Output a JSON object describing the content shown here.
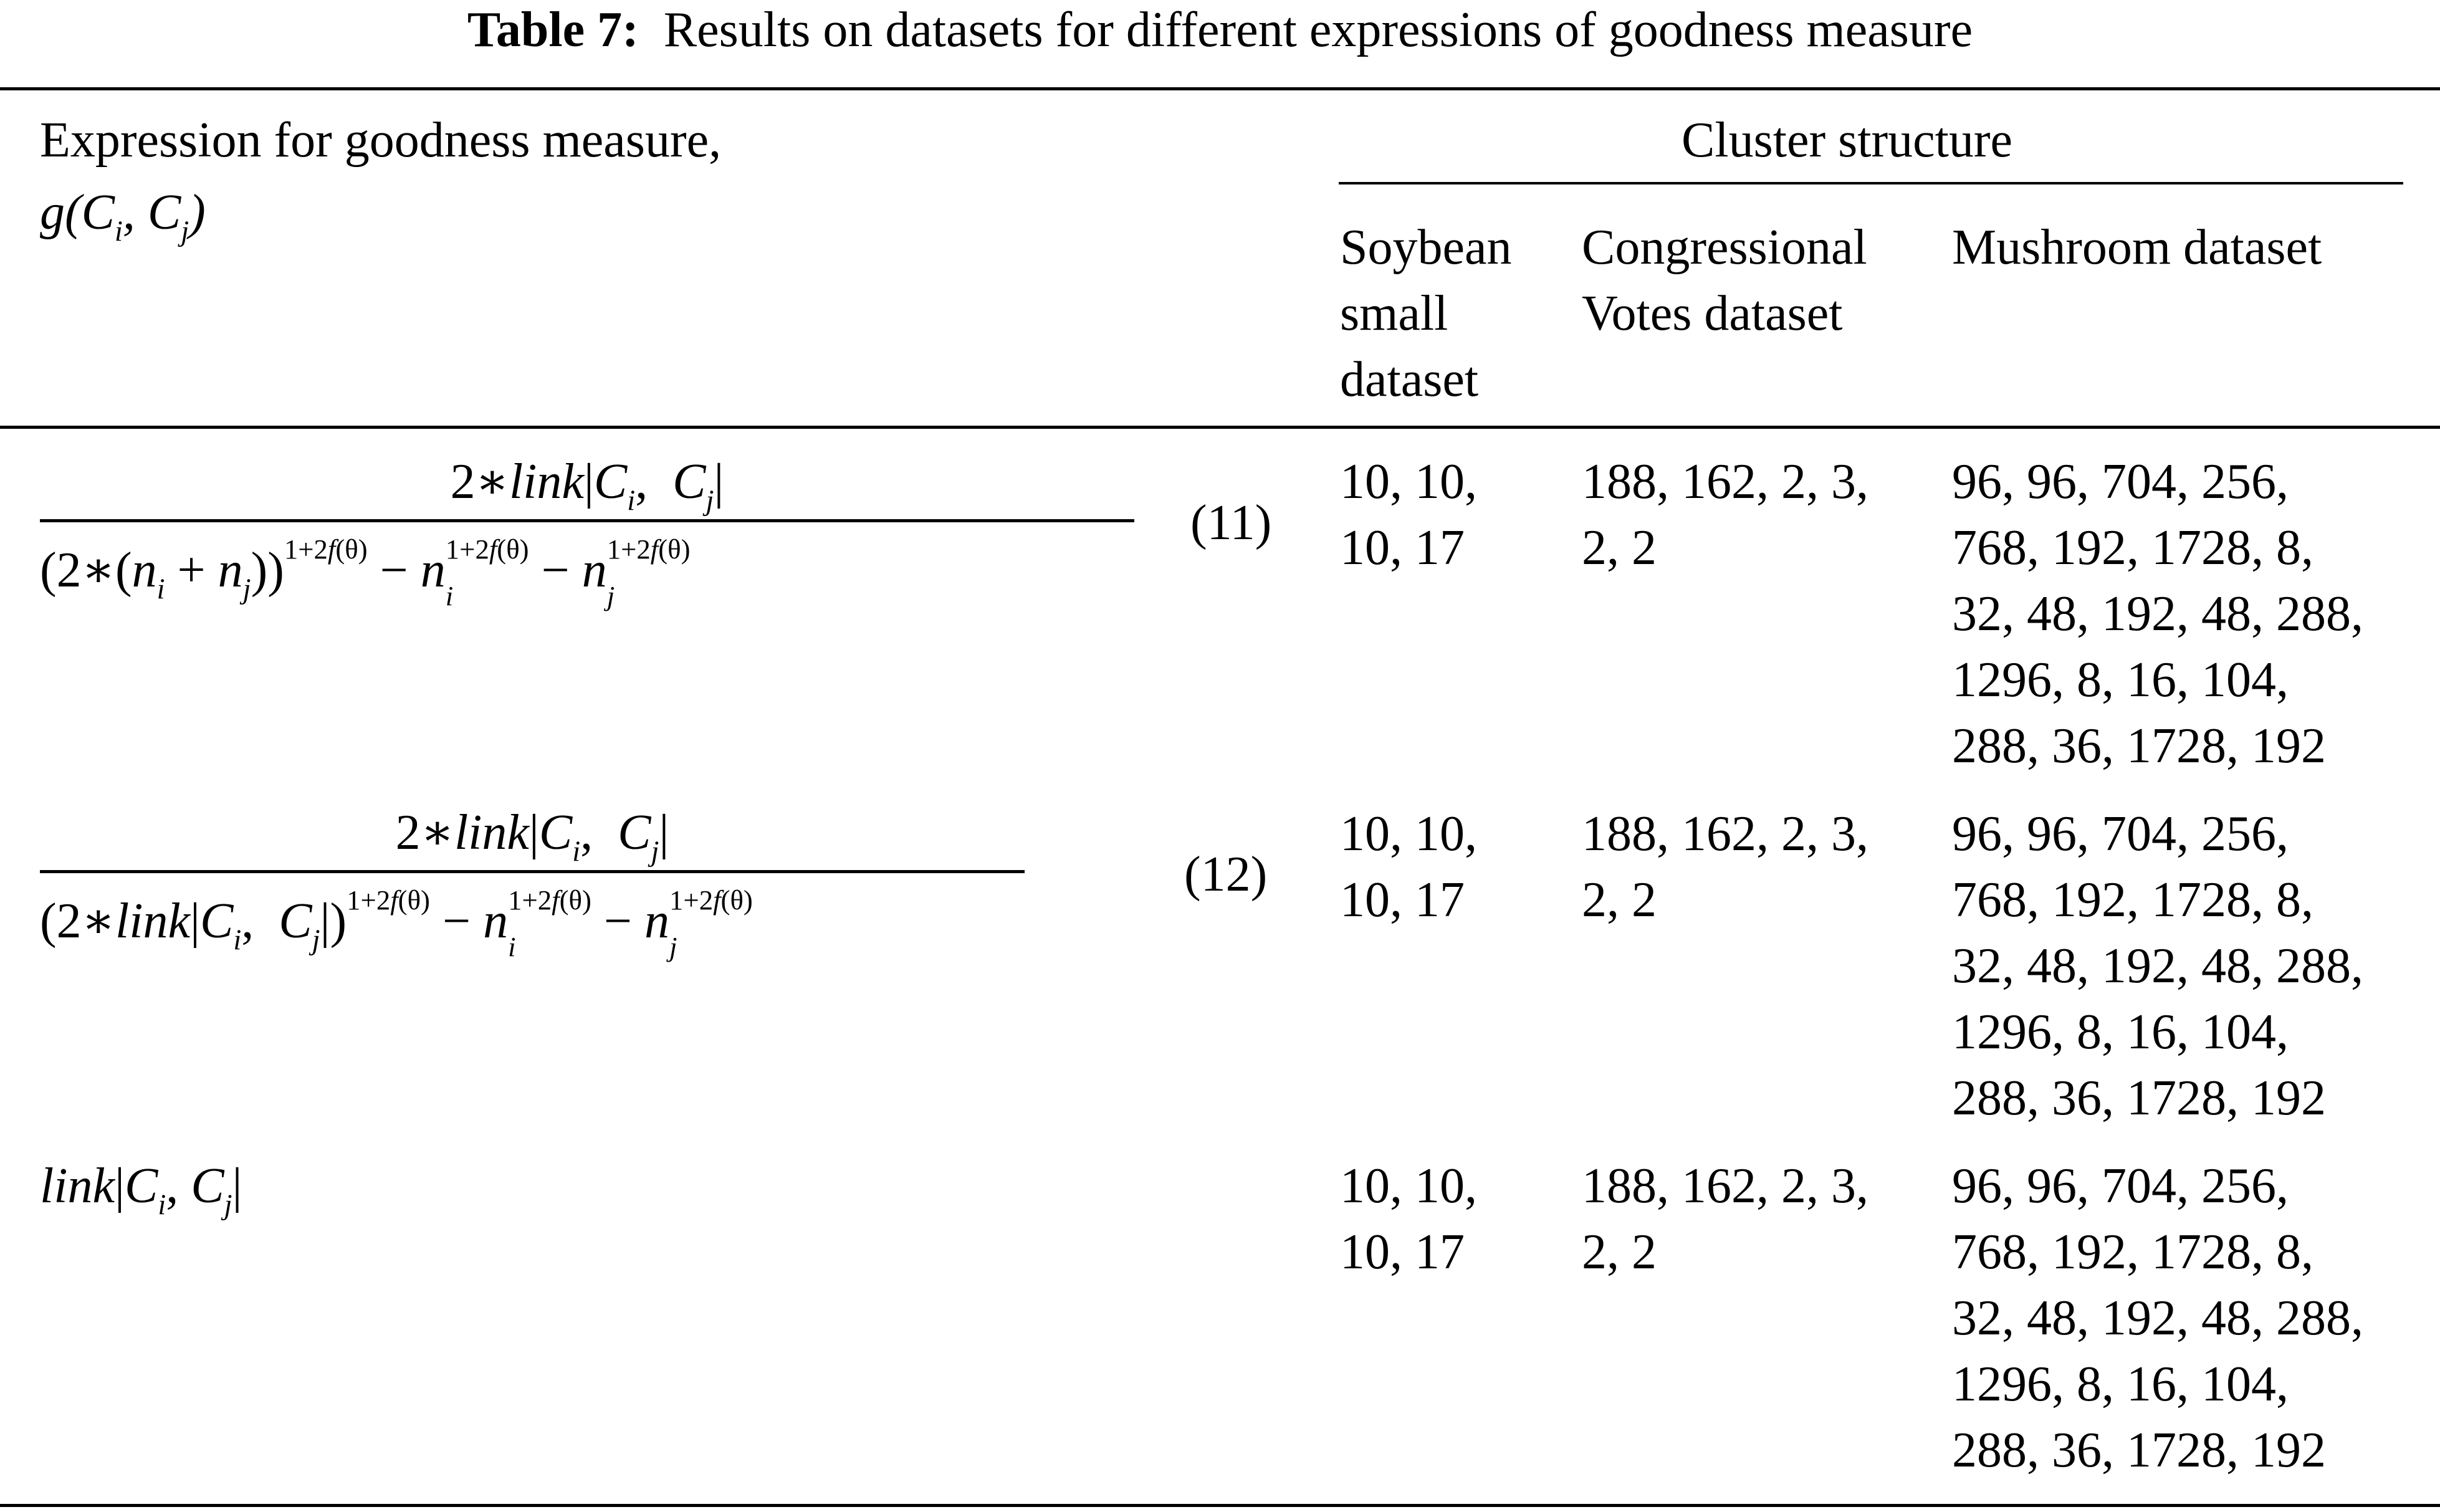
{
  "caption": {
    "label": "Table 7:",
    "text": "Results on datasets for different expressions of goodness measure"
  },
  "header": {
    "col1_line1": "Expression for goodness measure,",
    "col1_line2": "g(C_i, C_j)",
    "group": "Cluster structure",
    "soybean": "Soybean\nsmall\ndataset",
    "congressional": "Congressional\nVotes dataset",
    "mushroom": "Mushroom dataset"
  },
  "rows": [
    {
      "eq_number": "(11)",
      "soybean": "10, 10,\n10, 17",
      "congressional": "188, 162, 2, 3,\n2, 2",
      "mushroom": "96, 96, 704, 256,\n768, 192, 1728, 8,\n32, 48, 192, 48, 288,\n1296, 8, 16, 104,\n288, 36, 1728, 192"
    },
    {
      "eq_number": "(12)",
      "soybean": "10, 10,\n10, 17",
      "congressional": "188, 162, 2, 3,\n2, 2",
      "mushroom": "96, 96, 704, 256,\n768, 192, 1728, 8,\n32, 48, 192, 48, 288,\n1296, 8, 16, 104,\n288, 36, 1728, 192"
    },
    {
      "eq_number": "",
      "soybean": "10, 10,\n10, 17",
      "congressional": "188, 162, 2, 3,\n2, 2",
      "mushroom": "96, 96, 704, 256,\n768, 192, 1728, 8,\n32, 48, 192, 48, 288,\n1296, 8, 16, 104,\n288, 36, 1728, 192"
    }
  ]
}
